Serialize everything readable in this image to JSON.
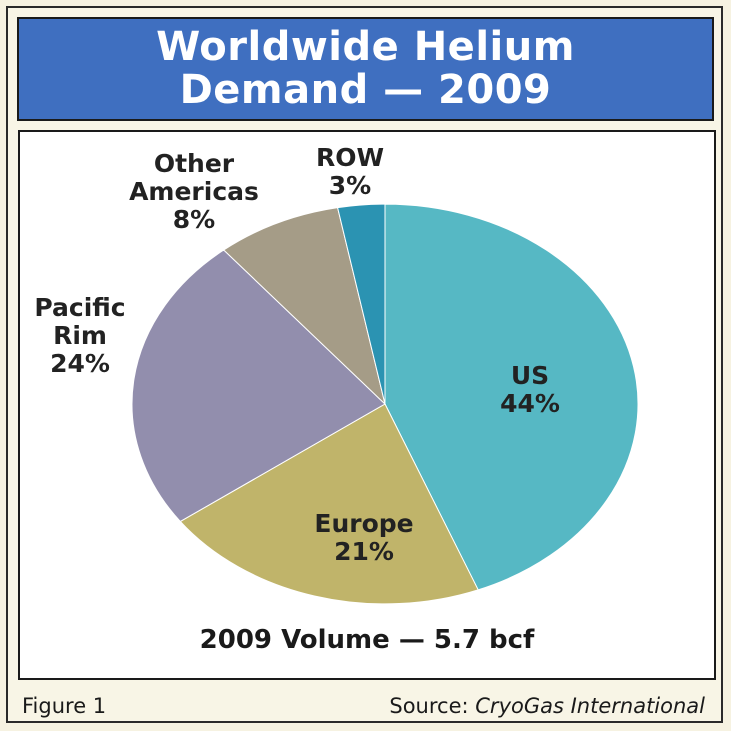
{
  "chart_data": {
    "type": "pie",
    "title_lines": [
      "Worldwide Helium",
      "Demand — 2009"
    ],
    "slices": [
      {
        "label_lines": [
          "US",
          "44%"
        ],
        "value": 44,
        "color": "#56b8c4"
      },
      {
        "label_lines": [
          "Europe",
          "21%"
        ],
        "value": 21,
        "color": "#c0b46a"
      },
      {
        "label_lines": [
          "Pacific",
          "Rim",
          "24%"
        ],
        "value": 24,
        "color": "#928ead"
      },
      {
        "label_lines": [
          "Other",
          "Americas",
          "8%"
        ],
        "value": 8,
        "color": "#a59c87"
      },
      {
        "label_lines": [
          "ROW",
          "3%"
        ],
        "value": 3,
        "color": "#2b93b2"
      }
    ],
    "annotation": "2009 Volume — 5.7 bcf"
  },
  "footer": {
    "figure_label": "Figure 1",
    "source_prefix": "Source:",
    "source_name": "CryoGas International"
  }
}
